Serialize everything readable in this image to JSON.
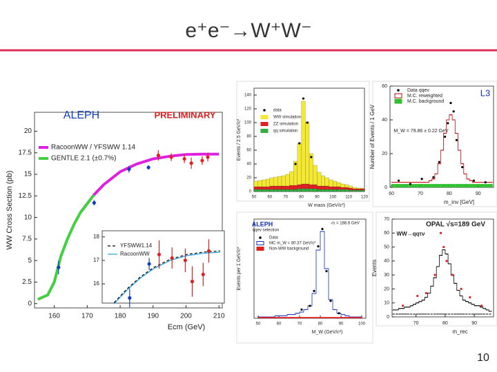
{
  "title": "e⁺e⁻→W⁺W⁻",
  "page_number": "10",
  "chart_data": [
    {
      "type": "line",
      "annotations": [
        "ALEPH",
        "PRELIMINARY"
      ],
      "xlabel": "Ecm (GeV)",
      "ylabel": "WW Cross Section (pb)",
      "xlim": [
        154,
        211
      ],
      "ylim": [
        -0.5,
        22.2
      ],
      "xticks": [
        160,
        170,
        180,
        190,
        200,
        210
      ],
      "yticks": [
        0,
        2.5,
        5,
        7.5,
        10,
        12.5,
        15,
        17.5,
        20
      ],
      "series": [
        {
          "name": "RacoonWW / YFSWW 1.14",
          "color": "#e020e0",
          "x": [
            168,
            170,
            172,
            175,
            180,
            185,
            190,
            195,
            200,
            205,
            210
          ],
          "values": [
            10.6,
            11.6,
            12.6,
            13.8,
            15.3,
            16.2,
            16.8,
            17.1,
            17.3,
            17.35,
            17.35
          ]
        },
        {
          "name": "GENTLE 2.1 (±0.7%)",
          "color": "#40d040",
          "x": [
            155,
            158,
            160,
            161,
            162,
            164,
            166,
            168,
            170,
            172
          ],
          "values": [
            0.5,
            1.0,
            2.5,
            4.0,
            5.5,
            7.5,
            9.2,
            10.6,
            11.6,
            12.6
          ]
        }
      ],
      "points": [
        {
          "color": "#1040c0",
          "x": [
            161.3,
            172.1,
            182.7,
            188.6
          ],
          "values": [
            4.2,
            11.7,
            15.6,
            15.8
          ],
          "errors": [
            0.8,
            0.3,
            0.4,
            0.25
          ]
        },
        {
          "color": "#e02020",
          "x": [
            191.6,
            195.5,
            199.5,
            201.6,
            204.9,
            206.6
          ],
          "values": [
            17.2,
            17.0,
            16.8,
            16.3,
            16.6,
            17.0
          ],
          "errors": [
            0.6,
            0.45,
            0.5,
            0.65,
            0.5,
            0.5
          ]
        }
      ]
    },
    {
      "type": "line",
      "xlim": [
        174.4,
        211.3
      ],
      "ylim": [
        15.18,
        18.26
      ],
      "yticks": [
        16,
        17,
        18
      ],
      "series": [
        {
          "name": "YFSWW1.14",
          "color": "#000000",
          "dashed": true,
          "x": [
            178,
            182,
            186,
            190,
            195,
            200,
            205,
            210
          ],
          "values": [
            15.2,
            15.8,
            16.3,
            16.7,
            17.05,
            17.25,
            17.35,
            17.4
          ]
        },
        {
          "name": "RacoonWW",
          "color": "#20a0e0",
          "x": [
            178,
            182,
            186,
            190,
            195,
            200,
            205,
            210
          ],
          "values": [
            15.15,
            15.75,
            16.25,
            16.65,
            17.0,
            17.2,
            17.3,
            17.35
          ]
        }
      ],
      "points": [
        {
          "color": "#1040c0",
          "x": [
            182.7,
            188.6
          ],
          "values": [
            15.4,
            16.85
          ],
          "errors": [
            0.4,
            0.25
          ]
        },
        {
          "color": "#e02020",
          "x": [
            191.6,
            195.5,
            199.5,
            201.6,
            204.9,
            206.6
          ],
          "values": [
            17.25,
            17.1,
            17.0,
            16.1,
            16.4,
            17.4
          ],
          "errors": [
            0.6,
            0.45,
            0.5,
            0.65,
            0.5,
            0.5
          ]
        }
      ]
    },
    {
      "type": "histogram",
      "stacked": true,
      "xlabel": "W mass (GeV/c²)",
      "ylabel": "Events / 2.5 GeV/c²",
      "xlim": [
        50,
        120
      ],
      "ylim": [
        0,
        150
      ],
      "xticks": [
        50,
        60,
        70,
        80,
        90,
        100,
        110,
        120
      ],
      "yticks": [
        0,
        20,
        40,
        60,
        80,
        100,
        120,
        140
      ],
      "bins": [
        50,
        52.5,
        55,
        57.5,
        60,
        62.5,
        65,
        67.5,
        70,
        72.5,
        75,
        77.5,
        80,
        82.5,
        85,
        87.5,
        90,
        92.5,
        95,
        97.5,
        100,
        102.5,
        105,
        107.5,
        110,
        112.5,
        115,
        117.5,
        120
      ],
      "series": [
        {
          "name": "qq simulation",
          "color": "#30b040",
          "values": [
            3,
            3,
            3,
            3,
            3,
            3,
            3,
            3,
            3,
            3,
            3,
            4,
            4,
            4,
            4,
            4,
            3,
            3,
            3,
            3,
            3,
            3,
            3,
            3,
            2,
            2,
            2,
            2
          ]
        },
        {
          "name": "ZZ simulation",
          "color": "#e02020",
          "values": [
            4,
            4,
            4,
            4,
            5,
            5,
            5,
            5,
            5,
            6,
            6,
            6,
            7,
            7,
            6,
            6,
            5,
            5,
            5,
            4,
            4,
            4,
            3,
            3,
            3,
            2,
            2,
            2
          ]
        },
        {
          "name": "WW simulation",
          "color": "#f4e830",
          "values": [
            8,
            9,
            10,
            11,
            12,
            13,
            14,
            15,
            17,
            20,
            35,
            60,
            120,
            90,
            45,
            28,
            20,
            15,
            12,
            10,
            8,
            6,
            5,
            4,
            3,
            2,
            1,
            1
          ]
        }
      ],
      "points": [
        {
          "name": "data",
          "color": "#000000",
          "x": [
            76.25,
            78.75,
            81.25,
            83.75,
            86.25
          ],
          "values": [
            40,
            70,
            135,
            100,
            50
          ]
        }
      ]
    },
    {
      "type": "histogram",
      "annotations": [
        "L3",
        "M_W = 79.86 ± 0.22 GeV"
      ],
      "xlabel": "m_inv [GeV]",
      "ylabel": "Number of Events / 1 GeV",
      "xlim": [
        59.5,
        95.3
      ],
      "ylim": [
        0,
        60
      ],
      "xticks": [
        60,
        70,
        80,
        90
      ],
      "yticks": [
        0,
        20,
        40,
        60
      ],
      "bins": [
        60,
        61,
        62,
        63,
        64,
        65,
        66,
        67,
        68,
        69,
        70,
        71,
        72,
        73,
        74,
        75,
        76,
        77,
        78,
        79,
        80,
        81,
        82,
        83,
        84,
        85,
        86,
        87,
        88,
        89,
        90,
        91,
        92,
        93,
        94,
        95
      ],
      "series": [
        {
          "name": "M.C. reweighted",
          "color": "#c00000",
          "style": "step",
          "values": [
            3,
            3,
            3,
            3,
            3,
            3,
            3,
            3,
            3,
            3,
            3,
            3,
            3,
            4,
            5,
            8,
            14,
            22,
            32,
            40,
            43,
            40,
            32,
            22,
            14,
            8,
            5,
            4,
            3,
            3,
            3,
            3,
            3,
            3,
            3
          ]
        },
        {
          "name": "M.C. background",
          "color": "#30c030",
          "values": [
            2,
            2,
            2,
            2,
            2,
            2,
            2,
            2,
            2,
            2,
            2,
            2,
            2,
            2,
            2,
            2,
            2,
            2,
            2,
            2,
            2,
            2,
            2,
            2,
            2,
            2,
            2,
            2,
            2,
            2,
            2,
            2,
            2,
            2,
            2
          ]
        }
      ],
      "points": [
        {
          "name": "Data qqev",
          "color": "#000000",
          "x": [
            62.5,
            66.5,
            70.5,
            74.5,
            76.5,
            78.5,
            79.5,
            80.5,
            81.5,
            82.5,
            84.5,
            88.5,
            92.5
          ],
          "values": [
            4,
            2,
            5,
            6,
            15,
            30,
            38,
            50,
            45,
            28,
            12,
            4,
            3
          ]
        }
      ]
    },
    {
      "type": "histogram",
      "annotations": [
        "ALEPH",
        "√s = 188.6 GeV",
        "qqev selection"
      ],
      "xlabel": "M_W (GeV/c²)",
      "ylabel": "Events per 1 GeV/c²",
      "xlim": [
        48,
        102
      ],
      "ylim": [
        0,
        80
      ],
      "xticks": [
        50,
        60,
        70,
        80,
        90,
        100
      ],
      "bins": [
        50,
        52,
        54,
        56,
        58,
        60,
        62,
        64,
        66,
        68,
        70,
        72,
        74,
        76,
        78,
        80,
        82,
        84,
        86,
        88,
        90,
        92,
        94,
        96,
        98,
        100
      ],
      "series": [
        {
          "name": "MC m_W = 80.37 GeV/c²",
          "color": "#1030c0",
          "style": "step",
          "values": [
            1,
            1,
            1,
            1,
            2,
            2,
            2,
            3,
            3,
            4,
            5,
            7,
            10,
            20,
            55,
            70,
            40,
            15,
            7,
            4,
            3,
            2,
            1,
            1,
            1
          ]
        },
        {
          "name": "Non-WW background",
          "color": "#e02020",
          "values": [
            1,
            1,
            1,
            1,
            1,
            1,
            1,
            1,
            1,
            1,
            1,
            1,
            1,
            1,
            1,
            1,
            1,
            1,
            1,
            1,
            1,
            1,
            1,
            1,
            1
          ]
        }
      ],
      "points": [
        {
          "name": "Data",
          "color": "#000000",
          "x": [
            71,
            75,
            77,
            79,
            81,
            83,
            85,
            89
          ],
          "values": [
            7,
            10,
            22,
            58,
            72,
            38,
            14,
            4
          ]
        }
      ]
    },
    {
      "type": "histogram",
      "annotations": [
        "OPAL √s=189 GeV",
        "WW→qqτν"
      ],
      "xlabel": "m_rec",
      "ylabel": "Events",
      "xlim": [
        61.8,
        96.6
      ],
      "ylim": [
        0,
        70
      ],
      "xticks": [
        70,
        80,
        90
      ],
      "yticks": [
        0,
        10,
        20,
        30,
        40,
        50,
        60,
        70
      ],
      "bins": [
        62,
        63,
        64,
        65,
        66,
        67,
        68,
        69,
        70,
        71,
        72,
        73,
        74,
        75,
        76,
        77,
        78,
        79,
        80,
        81,
        82,
        83,
        84,
        85,
        86,
        87,
        88,
        89,
        90,
        91,
        92,
        93,
        94,
        95,
        96
      ],
      "series": [
        {
          "color": "#000000",
          "style": "step",
          "values": [
            5,
            5,
            6,
            6,
            7,
            7,
            8,
            9,
            10,
            11,
            12,
            14,
            17,
            22,
            28,
            36,
            44,
            48,
            45,
            38,
            30,
            24,
            19,
            15,
            12,
            11,
            10,
            9,
            8,
            8,
            7,
            6,
            5,
            4
          ]
        },
        {
          "color": "#000000",
          "style": "step",
          "dashed": true,
          "values": [
            2,
            2,
            2,
            2,
            2,
            2,
            2,
            2,
            2,
            2,
            2,
            2,
            2,
            2,
            2,
            2,
            2,
            2,
            2,
            2,
            2,
            2,
            2,
            2,
            2,
            2,
            2,
            2,
            2,
            2,
            2,
            2,
            2,
            2
          ]
        }
      ],
      "points": [
        {
          "color": "#e02020",
          "x": [
            65.5,
            70.5,
            73.5,
            76.5,
            78.5,
            79.5,
            80.5,
            82.5,
            85.5,
            88.5,
            92.5
          ],
          "values": [
            8,
            15,
            17,
            30,
            60,
            50,
            40,
            30,
            20,
            14,
            8
          ]
        }
      ]
    }
  ]
}
